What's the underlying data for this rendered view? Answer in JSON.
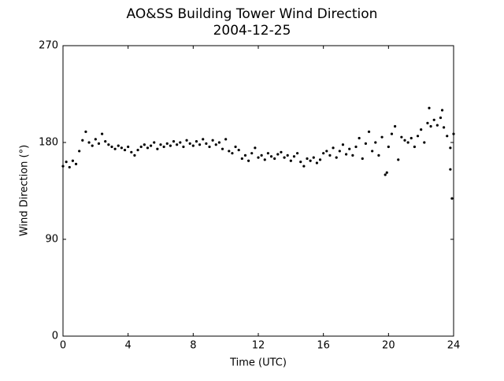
{
  "chart_data": {
    "type": "scatter",
    "title": "AO&SS Building Tower Wind Direction",
    "subtitle": "2004-12-25",
    "x_label": "Time (UTC)",
    "y_label": "Wind Direction (°)",
    "xlim": [
      0,
      24
    ],
    "xticks": [
      0,
      4,
      8,
      12,
      16,
      20,
      24
    ],
    "ylim": [
      0,
      270
    ],
    "yticks": [
      0,
      90,
      180,
      270
    ],
    "color": "#000000",
    "x": [
      0,
      0.2,
      0.4,
      0.6,
      0.8,
      1.0,
      1.2,
      1.4,
      1.6,
      1.8,
      2.0,
      2.2,
      2.4,
      2.6,
      2.8,
      3.0,
      3.2,
      3.4,
      3.6,
      3.8,
      4.0,
      4.2,
      4.4,
      4.6,
      4.8,
      5.0,
      5.2,
      5.4,
      5.6,
      5.8,
      6.0,
      6.2,
      6.4,
      6.6,
      6.8,
      7.0,
      7.2,
      7.4,
      7.6,
      7.8,
      8.0,
      8.2,
      8.4,
      8.6,
      8.8,
      9.0,
      9.2,
      9.4,
      9.6,
      9.8,
      10.0,
      10.2,
      10.4,
      10.6,
      10.8,
      11.0,
      11.2,
      11.4,
      11.6,
      11.8,
      12.0,
      12.2,
      12.4,
      12.6,
      12.8,
      13.0,
      13.2,
      13.4,
      13.6,
      13.8,
      14.0,
      14.2,
      14.4,
      14.6,
      14.8,
      15.0,
      15.2,
      15.4,
      15.6,
      15.8,
      16.0,
      16.2,
      16.4,
      16.6,
      16.8,
      17.0,
      17.2,
      17.4,
      17.6,
      17.8,
      18.0,
      18.2,
      18.4,
      18.6,
      18.8,
      19.0,
      19.2,
      19.4,
      19.6,
      19.8,
      20.0,
      20.2,
      20.4,
      20.6,
      20.8,
      21.0,
      21.2,
      21.4,
      21.6,
      21.8,
      22.0,
      22.2,
      22.4,
      22.6,
      22.8,
      23.0,
      23.2,
      23.4,
      23.6,
      23.8,
      24.0,
      23.9,
      23.8,
      22.5,
      23.3,
      19.9
    ],
    "values": [
      158,
      162,
      157,
      163,
      160,
      172,
      182,
      190,
      180,
      177,
      183,
      179,
      188,
      181,
      178,
      176,
      174,
      177,
      175,
      173,
      176,
      171,
      168,
      173,
      176,
      178,
      175,
      177,
      180,
      174,
      178,
      176,
      179,
      177,
      181,
      178,
      180,
      176,
      182,
      179,
      177,
      181,
      178,
      183,
      179,
      176,
      182,
      178,
      180,
      174,
      183,
      172,
      170,
      176,
      173,
      165,
      168,
      163,
      170,
      175,
      166,
      168,
      164,
      170,
      167,
      165,
      169,
      171,
      166,
      168,
      163,
      167,
      170,
      162,
      158,
      165,
      163,
      166,
      161,
      164,
      170,
      172,
      168,
      175,
      166,
      172,
      178,
      169,
      174,
      168,
      176,
      184,
      165,
      179,
      190,
      172,
      180,
      168,
      185,
      150,
      176,
      188,
      195,
      164,
      185,
      182,
      180,
      184,
      176,
      186,
      192,
      180,
      198,
      195,
      201,
      196,
      203,
      194,
      186,
      175,
      188,
      128,
      155,
      212,
      210,
      152
    ]
  }
}
